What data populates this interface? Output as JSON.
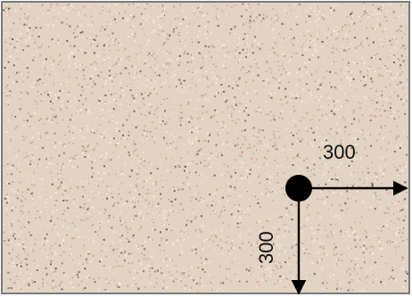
{
  "colors": {
    "background_base": "#e3d3c3",
    "speckle_light": "#f4ebe1",
    "speckle_mid": "#b9a898",
    "speckle_dark": "#6f675f",
    "speckle_warm": "#d4a88f",
    "frame_border": "#7a7a7a",
    "marker": "#000000",
    "arrow": "#000000"
  },
  "dimensions": {
    "horizontal_label": "300",
    "vertical_label": "300"
  }
}
